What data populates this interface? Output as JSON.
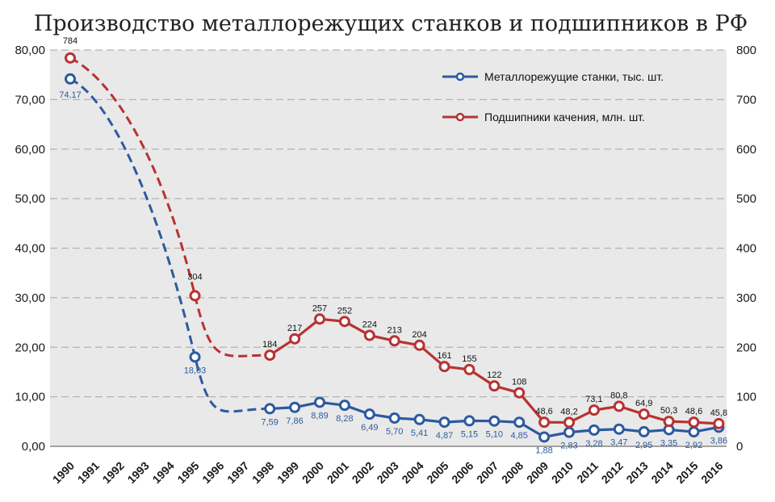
{
  "chart_data": {
    "type": "line",
    "title": "Производство металлорежущих станков и подшипников в РФ",
    "categories": [
      "1990",
      "1991",
      "1992",
      "1993",
      "1994",
      "1995",
      "1996",
      "1997",
      "1998",
      "1999",
      "2000",
      "2001",
      "2002",
      "2003",
      "2004",
      "2005",
      "2006",
      "2007",
      "2008",
      "2009",
      "2010",
      "2011",
      "2012",
      "2013",
      "2014",
      "2015",
      "2016"
    ],
    "left_axis": {
      "ylim": [
        0,
        80
      ],
      "ticks": [
        "0,00",
        "10,00",
        "20,00",
        "30,00",
        "40,00",
        "50,00",
        "60,00",
        "70,00",
        "80,00"
      ]
    },
    "right_axis": {
      "ylim": [
        0,
        800
      ],
      "ticks": [
        "0",
        "100",
        "200",
        "300",
        "400",
        "500",
        "600",
        "700",
        "800"
      ]
    },
    "grid": true,
    "legend_position": "top-right",
    "series": [
      {
        "name": "Металлорежущие станки, тыс. шт.",
        "axis": "left",
        "color": "#2c5aa0",
        "x": [
          "1990",
          "1995",
          "1998",
          "1999",
          "2000",
          "2001",
          "2002",
          "2003",
          "2004",
          "2005",
          "2006",
          "2007",
          "2008",
          "2009",
          "2010",
          "2011",
          "2012",
          "2013",
          "2014",
          "2015",
          "2016"
        ],
        "values": [
          74.17,
          18.03,
          7.59,
          7.86,
          8.89,
          8.28,
          6.49,
          5.7,
          5.41,
          4.87,
          5.15,
          5.1,
          4.85,
          1.88,
          2.83,
          3.28,
          3.47,
          2.95,
          3.35,
          2.92,
          3.86
        ],
        "labels": [
          "74,17",
          "18,03",
          "7,59",
          "7,86",
          "8,89",
          "8,28",
          "6,49",
          "5,70",
          "5,41",
          "4,87",
          "5,15",
          "5,10",
          "4,85",
          "1,88",
          "2,83",
          "3,28",
          "3,47",
          "2,95",
          "3,35",
          "2,92",
          "3,86"
        ]
      },
      {
        "name": "Подшипники качения, млн. шт.",
        "axis": "right",
        "color": "#b83232",
        "x": [
          "1990",
          "1995",
          "1998",
          "1999",
          "2000",
          "2001",
          "2002",
          "2003",
          "2004",
          "2005",
          "2006",
          "2007",
          "2008",
          "2009",
          "2010",
          "2011",
          "2012",
          "2013",
          "2014",
          "2015",
          "2016"
        ],
        "values": [
          784,
          304,
          184,
          217,
          257,
          252,
          224,
          213,
          204,
          161,
          155,
          122,
          108,
          48.6,
          48.2,
          73.1,
          80.8,
          64.9,
          50.3,
          48.6,
          45.8
        ],
        "labels": [
          "784",
          "304",
          "184",
          "217",
          "257",
          "252",
          "224",
          "213",
          "204",
          "161",
          "155",
          "122",
          "108",
          "48,6",
          "48,2",
          "73,1",
          "80,8",
          "64,9",
          "50,3",
          "48,6",
          "45,8"
        ]
      }
    ]
  }
}
